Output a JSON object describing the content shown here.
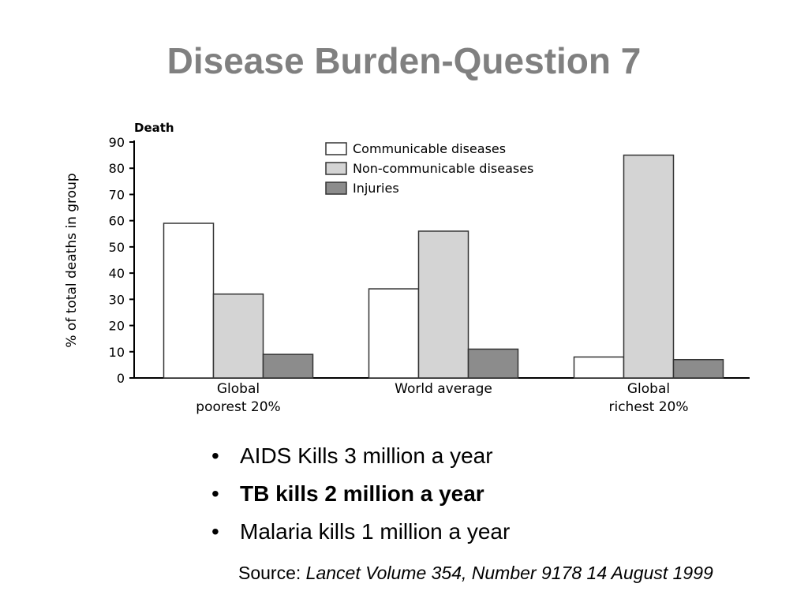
{
  "slide": {
    "title": "Disease Burden-Question 7",
    "bullets": [
      {
        "text": "AIDS Kills 3 million a year",
        "bold": false
      },
      {
        "text": "TB kills 2 million a year",
        "bold": true
      },
      {
        "text": "Malaria kills 1 million a year",
        "bold": false
      }
    ],
    "bullet_glyph": "•",
    "source_label": "Source: ",
    "source_ref": "Lancet Volume 354, Number 9178 14 August 1999"
  },
  "chart_data": {
    "type": "bar",
    "title": "Death",
    "ylabel": "% of total deaths in group",
    "xlabel": "",
    "ylim": [
      0,
      90
    ],
    "yticks": [
      0,
      10,
      20,
      30,
      40,
      50,
      60,
      70,
      80,
      90
    ],
    "categories": [
      [
        "Global",
        "poorest 20%"
      ],
      [
        "World average"
      ],
      [
        "Global",
        "richest 20%"
      ]
    ],
    "series": [
      {
        "name": "Communicable diseases",
        "values": [
          59,
          34,
          8
        ],
        "color": "#ffffff"
      },
      {
        "name": "Non-communicable diseases",
        "values": [
          32,
          56,
          85
        ],
        "color": "#d4d4d4"
      },
      {
        "name": "Injuries",
        "values": [
          9,
          11,
          7
        ],
        "color": "#8c8c8c"
      }
    ],
    "legend_position": "top-right",
    "grid": false
  }
}
